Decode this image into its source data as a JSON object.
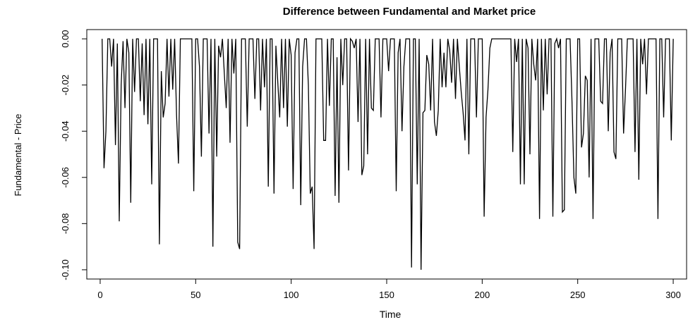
{
  "chart_data": {
    "type": "line",
    "title": "Difference between Fundamental and Market price",
    "xlabel": "Time",
    "ylabel": "Fundamental - Price",
    "xlim": [
      -7,
      307
    ],
    "ylim": [
      -0.104,
      0.004
    ],
    "x_ticks": [
      {
        "value": 0,
        "label": "0"
      },
      {
        "value": 50,
        "label": "50"
      },
      {
        "value": 100,
        "label": "100"
      },
      {
        "value": 150,
        "label": "150"
      },
      {
        "value": 200,
        "label": "200"
      },
      {
        "value": 250,
        "label": "250"
      },
      {
        "value": 300,
        "label": "300"
      }
    ],
    "y_ticks": [
      {
        "value": 0.0,
        "label": "0.00"
      },
      {
        "value": -0.02,
        "label": "-0.02"
      },
      {
        "value": -0.04,
        "label": "-0.04"
      },
      {
        "value": -0.06,
        "label": "-0.06"
      },
      {
        "value": -0.08,
        "label": "-0.08"
      },
      {
        "value": -0.1,
        "label": "-0.10"
      }
    ],
    "grid": false,
    "legend": "none",
    "line_color": "#000000",
    "series": [
      {
        "values": [
          [
            1,
            0
          ],
          [
            2,
            -0.056
          ],
          [
            3,
            -0.04
          ],
          [
            4,
            0
          ],
          [
            5,
            0
          ],
          [
            6,
            -0.012
          ],
          [
            7,
            0
          ],
          [
            8,
            -0.046
          ],
          [
            9,
            -0.002
          ],
          [
            10,
            -0.079
          ],
          [
            11,
            -0.02
          ],
          [
            12,
            -0.001
          ],
          [
            13,
            -0.03
          ],
          [
            14,
            0
          ],
          [
            15,
            -0.006
          ],
          [
            16,
            -0.071
          ],
          [
            17,
            0
          ],
          [
            18,
            -0.023
          ],
          [
            19,
            0
          ],
          [
            20,
            0
          ],
          [
            21,
            -0.027
          ],
          [
            22,
            -0.002
          ],
          [
            23,
            -0.033
          ],
          [
            24,
            0
          ],
          [
            25,
            -0.037
          ],
          [
            26,
            0
          ],
          [
            27,
            -0.063
          ],
          [
            28,
            0
          ],
          [
            29,
            0
          ],
          [
            30,
            0
          ],
          [
            31,
            -0.089
          ],
          [
            32,
            -0.014
          ],
          [
            33,
            -0.034
          ],
          [
            34,
            -0.028
          ],
          [
            35,
            0
          ],
          [
            36,
            -0.025
          ],
          [
            37,
            0
          ],
          [
            38,
            -0.022
          ],
          [
            39,
            0
          ],
          [
            40,
            -0.033
          ],
          [
            41,
            -0.054
          ],
          [
            42,
            0
          ],
          [
            43,
            0
          ],
          [
            44,
            0
          ],
          [
            45,
            0
          ],
          [
            46,
            0
          ],
          [
            47,
            0
          ],
          [
            48,
            0
          ],
          [
            49,
            -0.066
          ],
          [
            50,
            0
          ],
          [
            51,
            0
          ],
          [
            52,
            -0.012
          ],
          [
            53,
            -0.051
          ],
          [
            54,
            0
          ],
          [
            55,
            0
          ],
          [
            56,
            0
          ],
          [
            57,
            -0.041
          ],
          [
            58,
            0
          ],
          [
            59,
            -0.09
          ],
          [
            60,
            0
          ],
          [
            61,
            -0.051
          ],
          [
            62,
            -0.003
          ],
          [
            63,
            -0.008
          ],
          [
            64,
            0
          ],
          [
            65,
            -0.015
          ],
          [
            66,
            -0.03
          ],
          [
            67,
            0
          ],
          [
            68,
            -0.045
          ],
          [
            69,
            0
          ],
          [
            70,
            -0.015
          ],
          [
            71,
            0
          ],
          [
            72,
            -0.088
          ],
          [
            73,
            -0.091
          ],
          [
            74,
            0
          ],
          [
            75,
            0
          ],
          [
            76,
            0
          ],
          [
            77,
            -0.038
          ],
          [
            78,
            0
          ],
          [
            79,
            0
          ],
          [
            80,
            0
          ],
          [
            81,
            -0.026
          ],
          [
            82,
            0
          ],
          [
            83,
            0
          ],
          [
            84,
            -0.031
          ],
          [
            85,
            0
          ],
          [
            86,
            -0.021
          ],
          [
            87,
            0
          ],
          [
            88,
            -0.064
          ],
          [
            89,
            0
          ],
          [
            90,
            0
          ],
          [
            91,
            -0.067
          ],
          [
            92,
            -0.003
          ],
          [
            93,
            -0.019
          ],
          [
            94,
            -0.034
          ],
          [
            95,
            0
          ],
          [
            96,
            -0.03
          ],
          [
            97,
            0
          ],
          [
            98,
            -0.038
          ],
          [
            99,
            0
          ],
          [
            100,
            -0.007
          ],
          [
            101,
            -0.065
          ],
          [
            102,
            -0.006
          ],
          [
            103,
            0
          ],
          [
            104,
            0
          ],
          [
            105,
            -0.072
          ],
          [
            106,
            -0.012
          ],
          [
            107,
            0
          ],
          [
            108,
            0
          ],
          [
            109,
            -0.02
          ],
          [
            110,
            -0.067
          ],
          [
            111,
            -0.064
          ],
          [
            112,
            -0.091
          ],
          [
            113,
            0
          ],
          [
            114,
            0
          ],
          [
            115,
            0
          ],
          [
            116,
            0
          ],
          [
            117,
            -0.044
          ],
          [
            118,
            -0.044
          ],
          [
            119,
            0
          ],
          [
            120,
            -0.029
          ],
          [
            121,
            0
          ],
          [
            122,
            0
          ],
          [
            123,
            -0.068
          ],
          [
            124,
            -0.008
          ],
          [
            125,
            -0.071
          ],
          [
            126,
            0
          ],
          [
            127,
            -0.02
          ],
          [
            128,
            0
          ],
          [
            129,
            0
          ],
          [
            130,
            -0.057
          ],
          [
            131,
            0
          ],
          [
            132,
            -0.001
          ],
          [
            133,
            -0.004
          ],
          [
            134,
            0
          ],
          [
            135,
            -0.036
          ],
          [
            136,
            0
          ],
          [
            137,
            -0.059
          ],
          [
            138,
            -0.055
          ],
          [
            139,
            0
          ],
          [
            140,
            -0.05
          ],
          [
            141,
            0
          ],
          [
            142,
            -0.03
          ],
          [
            143,
            -0.031
          ],
          [
            144,
            0
          ],
          [
            145,
            0
          ],
          [
            146,
            0
          ],
          [
            147,
            -0.034
          ],
          [
            148,
            0
          ],
          [
            149,
            0
          ],
          [
            150,
            0
          ],
          [
            151,
            -0.014
          ],
          [
            152,
            0
          ],
          [
            153,
            0
          ],
          [
            154,
            0
          ],
          [
            155,
            -0.066
          ],
          [
            156,
            -0.006
          ],
          [
            157,
            0
          ],
          [
            158,
            -0.04
          ],
          [
            159,
            -0.012
          ],
          [
            160,
            0
          ],
          [
            161,
            0
          ],
          [
            162,
            0
          ],
          [
            163,
            -0.099
          ],
          [
            164,
            0
          ],
          [
            165,
            0
          ],
          [
            166,
            -0.063
          ],
          [
            167,
            0
          ],
          [
            168,
            -0.1
          ],
          [
            169,
            -0.032
          ],
          [
            170,
            -0.031
          ],
          [
            171,
            -0.007
          ],
          [
            172,
            -0.011
          ],
          [
            173,
            -0.031
          ],
          [
            174,
            0
          ],
          [
            175,
            -0.036
          ],
          [
            176,
            -0.042
          ],
          [
            177,
            -0.031
          ],
          [
            178,
            0
          ],
          [
            179,
            -0.021
          ],
          [
            180,
            -0.006
          ],
          [
            181,
            -0.021
          ],
          [
            182,
            0
          ],
          [
            183,
            -0.005
          ],
          [
            184,
            -0.019
          ],
          [
            185,
            0
          ],
          [
            186,
            -0.026
          ],
          [
            187,
            0
          ],
          [
            188,
            -0.012
          ],
          [
            189,
            -0.023
          ],
          [
            190,
            -0.032
          ],
          [
            191,
            -0.044
          ],
          [
            192,
            0
          ],
          [
            193,
            -0.05
          ],
          [
            194,
            0
          ],
          [
            195,
            0
          ],
          [
            196,
            0
          ],
          [
            197,
            -0.034
          ],
          [
            198,
            0
          ],
          [
            199,
            0
          ],
          [
            200,
            0
          ],
          [
            201,
            -0.077
          ],
          [
            202,
            -0.034
          ],
          [
            203,
            -0.022
          ],
          [
            204,
            -0.004
          ],
          [
            205,
            0
          ],
          [
            206,
            0
          ],
          [
            207,
            0
          ],
          [
            208,
            0
          ],
          [
            209,
            0
          ],
          [
            210,
            0
          ],
          [
            211,
            0
          ],
          [
            212,
            0
          ],
          [
            213,
            0
          ],
          [
            214,
            0
          ],
          [
            215,
            0
          ],
          [
            216,
            -0.049
          ],
          [
            217,
            0
          ],
          [
            218,
            -0.01
          ],
          [
            219,
            0
          ],
          [
            220,
            -0.063
          ],
          [
            221,
            0
          ],
          [
            222,
            -0.063
          ],
          [
            223,
            0
          ],
          [
            224,
            -0.004
          ],
          [
            225,
            -0.05
          ],
          [
            226,
            0
          ],
          [
            227,
            -0.011
          ],
          [
            228,
            -0.018
          ],
          [
            229,
            0
          ],
          [
            230,
            -0.078
          ],
          [
            231,
            0
          ],
          [
            232,
            -0.031
          ],
          [
            233,
            0
          ],
          [
            234,
            -0.024
          ],
          [
            235,
            0
          ],
          [
            236,
            0
          ],
          [
            237,
            -0.077
          ],
          [
            238,
            -0.002
          ],
          [
            239,
            0
          ],
          [
            240,
            -0.004
          ],
          [
            241,
            0
          ],
          [
            242,
            -0.075
          ],
          [
            243,
            -0.074
          ],
          [
            244,
            0
          ],
          [
            245,
            0
          ],
          [
            246,
            0
          ],
          [
            247,
            -0.027
          ],
          [
            248,
            -0.06
          ],
          [
            249,
            -0.067
          ],
          [
            250,
            0
          ],
          [
            251,
            0
          ],
          [
            252,
            -0.047
          ],
          [
            253,
            -0.041
          ],
          [
            254,
            -0.016
          ],
          [
            255,
            -0.018
          ],
          [
            256,
            -0.06
          ],
          [
            257,
            0
          ],
          [
            258,
            -0.078
          ],
          [
            259,
            0
          ],
          [
            260,
            0
          ],
          [
            261,
            0
          ],
          [
            262,
            -0.027
          ],
          [
            263,
            -0.028
          ],
          [
            264,
            0
          ],
          [
            265,
            0
          ],
          [
            266,
            -0.04
          ],
          [
            267,
            -0.006
          ],
          [
            268,
            0
          ],
          [
            269,
            -0.049
          ],
          [
            270,
            -0.052
          ],
          [
            271,
            0
          ],
          [
            272,
            0
          ],
          [
            273,
            0
          ],
          [
            274,
            -0.041
          ],
          [
            275,
            -0.022
          ],
          [
            276,
            0
          ],
          [
            277,
            0
          ],
          [
            278,
            0
          ],
          [
            279,
            0
          ],
          [
            280,
            -0.049
          ],
          [
            281,
            0
          ],
          [
            282,
            -0.061
          ],
          [
            283,
            0
          ],
          [
            284,
            -0.011
          ],
          [
            285,
            0
          ],
          [
            286,
            -0.024
          ],
          [
            287,
            0
          ],
          [
            288,
            0
          ],
          [
            289,
            0
          ],
          [
            290,
            0
          ],
          [
            291,
            0
          ],
          [
            292,
            -0.078
          ],
          [
            293,
            0
          ],
          [
            294,
            0
          ],
          [
            295,
            -0.034
          ],
          [
            296,
            0
          ],
          [
            297,
            0
          ],
          [
            298,
            0
          ],
          [
            299,
            -0.044
          ],
          [
            300,
            0
          ]
        ]
      }
    ]
  }
}
